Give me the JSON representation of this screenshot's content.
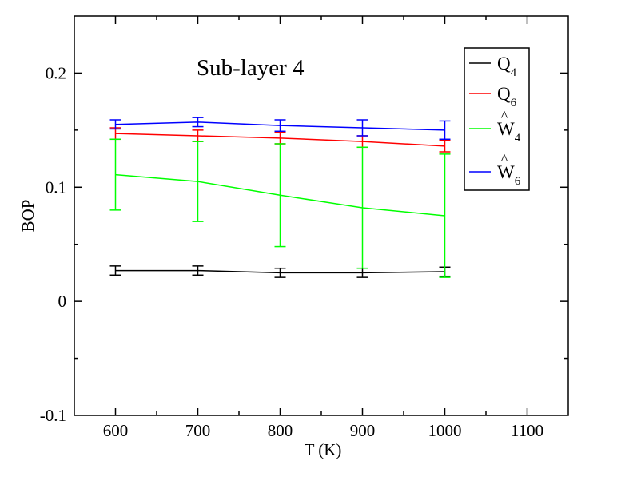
{
  "chart_data": {
    "type": "line",
    "annotation": "Sub-layer 4",
    "xlabel": "T (K)",
    "ylabel": "BOP",
    "xlim": [
      550,
      1150
    ],
    "ylim": [
      -0.1,
      0.25
    ],
    "x_ticks": [
      600,
      700,
      800,
      900,
      1000,
      1100
    ],
    "x_tick_labels": [
      "600",
      "700",
      "800",
      "900",
      "1000",
      "1100"
    ],
    "y_ticks": [
      -0.1,
      0,
      0.1,
      0.2
    ],
    "y_tick_labels": [
      "-0.1",
      "0",
      "0.1",
      "0.2"
    ],
    "grid": false,
    "legend_position": "top-right",
    "x": [
      600,
      700,
      800,
      900,
      1000
    ],
    "series": [
      {
        "name": "Q4",
        "label_base": "Q",
        "label_sub": "4",
        "hat": false,
        "color": "#000000",
        "values": [
          0.027,
          0.027,
          0.025,
          0.025,
          0.026
        ],
        "errors": [
          0.004,
          0.004,
          0.004,
          0.004,
          0.004
        ]
      },
      {
        "name": "Q6",
        "label_base": "Q",
        "label_sub": "6",
        "hat": false,
        "color": "#ff0000",
        "values": [
          0.147,
          0.145,
          0.143,
          0.14,
          0.136
        ],
        "errors": [
          0.005,
          0.005,
          0.005,
          0.005,
          0.005
        ]
      },
      {
        "name": "W4",
        "label_base": "W",
        "label_sub": "4",
        "hat": true,
        "color": "#00ff00",
        "values": [
          0.111,
          0.105,
          0.093,
          0.082,
          0.075
        ],
        "errors": [
          0.031,
          0.035,
          0.045,
          0.053,
          0.054
        ]
      },
      {
        "name": "W6",
        "label_base": "W",
        "label_sub": "6",
        "hat": true,
        "color": "#0000ff",
        "values": [
          0.155,
          0.157,
          0.154,
          0.152,
          0.15
        ],
        "errors": [
          0.004,
          0.004,
          0.005,
          0.007,
          0.008
        ]
      }
    ]
  }
}
